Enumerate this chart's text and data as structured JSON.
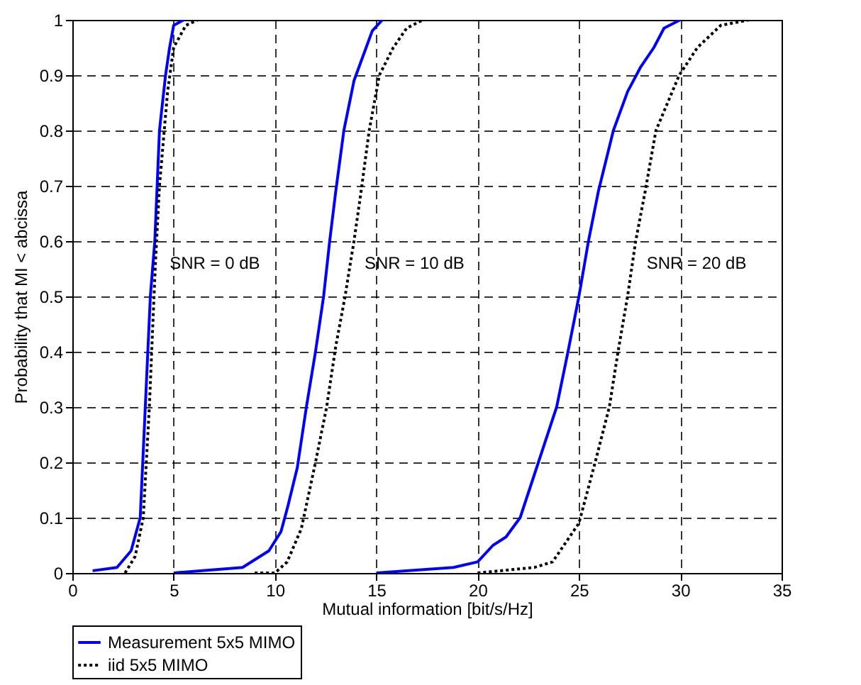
{
  "chart_data": {
    "type": "line",
    "xlabel": "Mutual information  [bit/s/Hz]",
    "ylabel": "Probability that MI < abcissa",
    "xlim": [
      0,
      35
    ],
    "xticks": [
      0,
      5,
      10,
      15,
      20,
      25,
      30,
      35
    ],
    "ylim": [
      0,
      1
    ],
    "yticks": [
      0,
      0.1,
      0.2,
      0.3,
      0.4,
      0.5,
      0.6,
      0.7,
      0.8,
      0.9,
      1
    ],
    "grid": true,
    "legend": "bottom",
    "series": [
      {
        "name": "Measurement 5x5 MIMO",
        "color": "#0000ff",
        "line_style": "solid",
        "x": [
          1.0,
          2.2,
          2.9,
          3.35,
          3.6,
          3.85,
          4.07,
          4.3,
          4.6,
          4.8,
          5.0,
          5.5
        ],
        "values": [
          0.004,
          0.01,
          0.04,
          0.1,
          0.3,
          0.5,
          0.6,
          0.8,
          0.9,
          0.95,
          0.99,
          1
        ]
      },
      {
        "name": "iid 5x5 MIMO",
        "color": "#000000",
        "line_style": "dotted",
        "x": [
          2.6,
          3.1,
          3.5,
          3.8,
          4.03,
          4.1,
          4.3,
          4.7,
          5.0,
          5.6,
          6.2
        ],
        "values": [
          0,
          0.03,
          0.1,
          0.3,
          0.5,
          0.56,
          0.7,
          0.87,
          0.95,
          0.99,
          1
        ]
      },
      {
        "color": "#0000ff",
        "line_style": "solid",
        "x": [
          5.0,
          8.4,
          9.7,
          10.3,
          10.63,
          11.1,
          11.55,
          12.0,
          12.4,
          12.7,
          13.0,
          13.4,
          13.9,
          14.5,
          14.8,
          15.3
        ],
        "values": [
          0,
          0.01,
          0.04,
          0.075,
          0.12,
          0.19,
          0.3,
          0.4,
          0.5,
          0.6,
          0.69,
          0.8,
          0.89,
          0.95,
          0.98,
          1
        ]
      },
      {
        "color": "#000000",
        "line_style": "dotted",
        "x": [
          9.0,
          10.0,
          10.6,
          11.3,
          12.0,
          12.55,
          13.0,
          13.46,
          13.72,
          13.9,
          14.25,
          14.65,
          15.15,
          15.84,
          16.5,
          17.3
        ],
        "values": [
          0,
          0,
          0.02,
          0.08,
          0.2,
          0.3,
          0.41,
          0.5,
          0.56,
          0.6,
          0.69,
          0.8,
          0.9,
          0.95,
          0.985,
          1
        ]
      },
      {
        "color": "#0000ff",
        "line_style": "solid",
        "x": [
          15.0,
          18.8,
          20.0,
          20.76,
          21.4,
          22.1,
          23.0,
          23.9,
          24.46,
          25.0,
          25.47,
          25.96,
          26.7,
          27.4,
          28.05,
          28.7,
          29.2,
          30.0
        ],
        "values": [
          0,
          0.01,
          0.02,
          0.05,
          0.065,
          0.1,
          0.2,
          0.3,
          0.4,
          0.5,
          0.6,
          0.69,
          0.8,
          0.87,
          0.915,
          0.95,
          0.985,
          1
        ]
      },
      {
        "color": "#000000",
        "line_style": "dotted",
        "x": [
          20.0,
          22.8,
          23.7,
          25.0,
          25.8,
          26.5,
          26.93,
          27.4,
          27.64,
          27.8,
          28.27,
          28.8,
          29.95,
          30.85,
          32.0,
          33.4
        ],
        "values": [
          0,
          0.01,
          0.02,
          0.09,
          0.2,
          0.3,
          0.4,
          0.5,
          0.56,
          0.6,
          0.69,
          0.8,
          0.9,
          0.95,
          0.99,
          1
        ]
      }
    ],
    "annotations": [
      {
        "text": "SNR = 0 dB",
        "x": 4.1,
        "y": 0.56
      },
      {
        "text": "SNR = 10 dB",
        "x": 13.72,
        "y": 0.56
      },
      {
        "text": "SNR = 20 dB",
        "x": 27.64,
        "y": 0.56
      }
    ]
  }
}
